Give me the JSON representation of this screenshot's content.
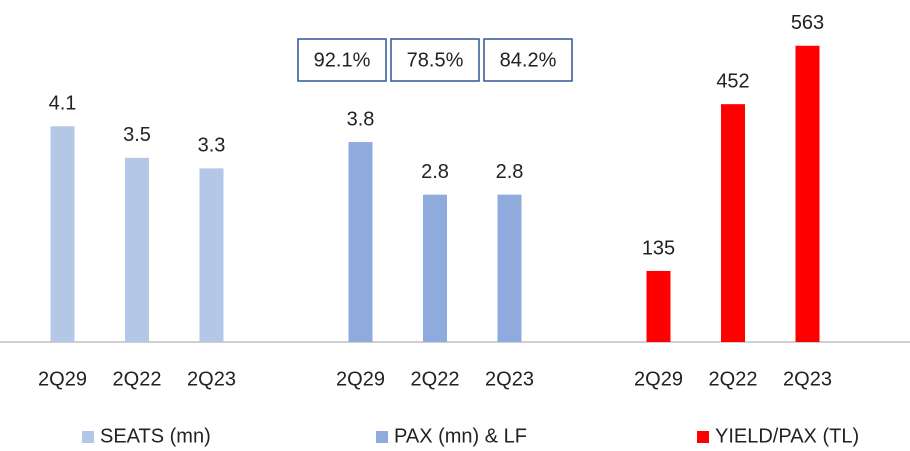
{
  "chart_data": [
    {
      "type": "bar",
      "categories": [
        "2Q29",
        "2Q22",
        "2Q23"
      ],
      "ylim": [
        0,
        6.5
      ],
      "series": [
        {
          "name": "SEATS (mn)",
          "color": "#b4c7e7",
          "values": [
            4.1,
            3.5,
            3.3
          ]
        }
      ]
    },
    {
      "type": "bar",
      "categories": [
        "2Q29",
        "2Q22",
        "2Q23"
      ],
      "ylim": [
        0,
        6.5
      ],
      "annotations": [
        "92.1%",
        "78.5%",
        "84.2%"
      ],
      "series": [
        {
          "name": "PAX (mn) & LF",
          "color": "#8faadc",
          "values": [
            3.8,
            2.8,
            2.8
          ]
        }
      ]
    },
    {
      "type": "bar",
      "categories": [
        "2Q29",
        "2Q22",
        "2Q23"
      ],
      "ylim": [
        0,
        650
      ],
      "series": [
        {
          "name": "YIELD/PAX (TL)",
          "color": "#ff0000",
          "values": [
            135,
            452,
            563
          ]
        }
      ]
    }
  ]
}
